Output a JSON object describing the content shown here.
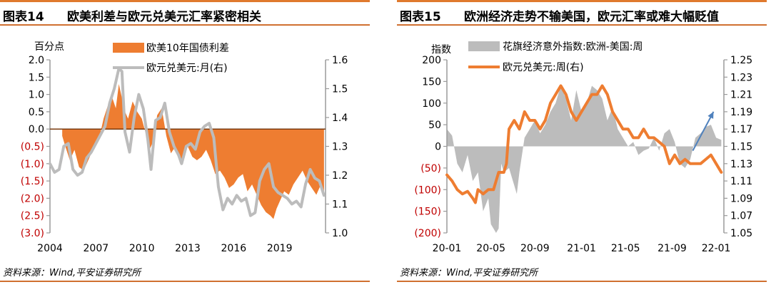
{
  "colors": {
    "orange": "#ee7d31",
    "gray": "#bcbcbc",
    "red": "#c00000",
    "axis": "#9a9a9a",
    "arrow": "#4f81bd",
    "rule": "#d07030"
  },
  "left": {
    "title_num": "图表14",
    "title_text": "欧美利差与欧元兑美元汇率紧密相关",
    "source": "资料来源：Wind,平安证券研究所",
    "chart_data": {
      "type": "area+line",
      "ylabel_left": "百分点",
      "ylim_left": [
        -3.0,
        2.0
      ],
      "yticks_left": [
        "2.0",
        "1.5",
        "1.0",
        "0.5",
        "0.0",
        "(0.5)",
        "(1.0)",
        "(1.5)",
        "(2.0)",
        "(2.5)",
        "(3.0)"
      ],
      "ylim_right": [
        1.0,
        1.6
      ],
      "yticks_right": [
        "1.6",
        "1.5",
        "1.4",
        "1.3",
        "1.2",
        "1.1",
        "1.0"
      ],
      "xlim": [
        2004,
        2022
      ],
      "xticks": [
        "2004",
        "2007",
        "2010",
        "2013",
        "2016",
        "2019"
      ],
      "series": [
        {
          "name": "欧美10年国债利差",
          "kind": "area",
          "axis": "left",
          "x": [
            2004.8,
            2005.0,
            2005.3,
            2005.6,
            2005.9,
            2006.2,
            2006.6,
            2006.9,
            2007.2,
            2007.5,
            2007.8,
            2008.0,
            2008.3,
            2008.5,
            2008.7,
            2008.9,
            2009.1,
            2009.4,
            2009.7,
            2010.0,
            2010.3,
            2010.5,
            2010.8,
            2011.0,
            2011.3,
            2011.6,
            2011.9,
            2012.2,
            2012.5,
            2012.8,
            2013.0,
            2013.3,
            2013.6,
            2013.9,
            2014.2,
            2014.5,
            2014.8,
            2015.1,
            2015.4,
            2015.7,
            2016.0,
            2016.3,
            2016.6,
            2016.9,
            2017.2,
            2017.5,
            2017.8,
            2018.1,
            2018.4,
            2018.6,
            2018.8,
            2019.0,
            2019.3,
            2019.6,
            2019.9,
            2020.2,
            2020.5,
            2020.8,
            2021.1,
            2021.4,
            2021.7,
            2021.9
          ],
          "y": [
            -0.2,
            -0.5,
            -0.9,
            -0.6,
            -1.1,
            -1.2,
            -0.8,
            -0.5,
            -0.3,
            0.3,
            0.7,
            1.0,
            0.6,
            1.3,
            0.9,
            0.5,
            0.3,
            0.8,
            0.5,
            0.3,
            -0.2,
            -0.6,
            -0.3,
            0.4,
            0.6,
            -0.2,
            -0.7,
            -0.5,
            -1.0,
            -0.6,
            -0.5,
            -0.8,
            -0.9,
            -0.8,
            -0.6,
            -0.9,
            -1.3,
            -1.2,
            -1.4,
            -1.7,
            -1.6,
            -1.4,
            -1.3,
            -1.8,
            -1.6,
            -1.9,
            -2.2,
            -2.4,
            -2.5,
            -2.6,
            -2.3,
            -2.1,
            -1.8,
            -1.9,
            -1.6,
            -1.4,
            -1.2,
            -1.5,
            -1.7,
            -1.9,
            -1.6,
            -1.8
          ]
        },
        {
          "name": "欧元兑美元:月(右)",
          "kind": "line",
          "axis": "right",
          "x": [
            2004.0,
            2004.3,
            2004.6,
            2004.9,
            2005.2,
            2005.5,
            2005.8,
            2006.1,
            2006.4,
            2006.7,
            2007.0,
            2007.3,
            2007.6,
            2007.9,
            2008.2,
            2008.5,
            2008.7,
            2008.9,
            2009.2,
            2009.5,
            2009.8,
            2010.1,
            2010.4,
            2010.6,
            2010.9,
            2011.2,
            2011.5,
            2011.8,
            2012.1,
            2012.4,
            2012.6,
            2012.9,
            2013.2,
            2013.5,
            2013.8,
            2014.1,
            2014.4,
            2014.7,
            2015.0,
            2015.3,
            2015.6,
            2015.9,
            2016.2,
            2016.5,
            2016.8,
            2017.1,
            2017.4,
            2017.7,
            2018.0,
            2018.3,
            2018.6,
            2018.9,
            2019.2,
            2019.5,
            2019.8,
            2020.1,
            2020.4,
            2020.7,
            2021.0,
            2021.3,
            2021.6,
            2021.9
          ],
          "y": [
            1.24,
            1.21,
            1.22,
            1.3,
            1.31,
            1.22,
            1.2,
            1.21,
            1.26,
            1.28,
            1.31,
            1.34,
            1.37,
            1.45,
            1.5,
            1.57,
            1.56,
            1.35,
            1.28,
            1.4,
            1.48,
            1.43,
            1.32,
            1.22,
            1.39,
            1.4,
            1.45,
            1.35,
            1.3,
            1.27,
            1.24,
            1.3,
            1.31,
            1.29,
            1.35,
            1.37,
            1.38,
            1.33,
            1.16,
            1.08,
            1.12,
            1.1,
            1.13,
            1.11,
            1.12,
            1.06,
            1.07,
            1.18,
            1.22,
            1.24,
            1.16,
            1.14,
            1.13,
            1.12,
            1.1,
            1.11,
            1.09,
            1.17,
            1.22,
            1.19,
            1.18,
            1.13
          ]
        }
      ]
    }
  },
  "right": {
    "title_num": "图表15",
    "title_text": "欧洲经济走势不输美国，欧元汇率或难大幅贬值",
    "source": "资料来源：Wind,平安证券研究所",
    "chart_data": {
      "type": "area+line",
      "ylabel_left": "指数",
      "ylim_left": [
        -200,
        200
      ],
      "yticks_left": [
        "200",
        "150",
        "100",
        "50",
        "0",
        "(50)",
        "(100)",
        "(150)",
        "(200)"
      ],
      "ylim_right": [
        1.05,
        1.25
      ],
      "yticks_right": [
        "1.25",
        "1.23",
        "1.21",
        "1.19",
        "1.17",
        "1.15",
        "1.13",
        "1.11",
        "1.09",
        "1.07",
        "1.05"
      ],
      "xlim": [
        0,
        107
      ],
      "xticks": [
        "20-01",
        "20-05",
        "20-09",
        "21-01",
        "21-05",
        "21-09",
        "22-01"
      ],
      "series": [
        {
          "name": "花旗经济意外指数:欧洲-美国:周",
          "kind": "area",
          "axis": "left",
          "x": [
            0,
            2,
            4,
            6,
            8,
            10,
            12,
            14,
            16,
            17,
            18,
            19,
            20,
            21,
            22,
            24,
            26,
            27,
            28,
            30,
            32,
            34,
            36,
            38,
            40,
            42,
            44,
            46,
            48,
            50,
            52,
            54,
            56,
            58,
            60,
            62,
            64,
            66,
            68,
            70,
            72,
            74,
            76,
            78,
            80,
            82,
            84,
            86,
            88,
            90,
            92,
            94,
            96,
            98,
            100,
            102,
            104,
            106
          ],
          "y": [
            40,
            25,
            -40,
            -60,
            -20,
            -80,
            -60,
            -150,
            -120,
            -180,
            -190,
            -200,
            -190,
            -40,
            -60,
            -50,
            -90,
            -110,
            -60,
            20,
            40,
            60,
            30,
            50,
            80,
            100,
            140,
            110,
            60,
            130,
            80,
            100,
            140,
            130,
            110,
            60,
            90,
            40,
            20,
            0,
            10,
            -20,
            -10,
            -5,
            20,
            -10,
            30,
            40,
            10,
            -40,
            -50,
            -30,
            20,
            30,
            45,
            50,
            20,
            15
          ]
        },
        {
          "name": "欧元兑美元:周(右)",
          "kind": "line",
          "axis": "right",
          "x": [
            0,
            2,
            4,
            6,
            8,
            10,
            11,
            12,
            14,
            16,
            18,
            19,
            20,
            22,
            23,
            24,
            26,
            28,
            30,
            32,
            34,
            36,
            38,
            40,
            42,
            44,
            46,
            48,
            50,
            52,
            54,
            56,
            58,
            60,
            62,
            64,
            66,
            68,
            70,
            72,
            74,
            76,
            78,
            80,
            82,
            84,
            86,
            88,
            90,
            92,
            94,
            96,
            98,
            100,
            102,
            104,
            106
          ],
          "y": [
            1.117,
            1.11,
            1.1,
            1.095,
            1.098,
            1.09,
            1.085,
            1.1,
            1.095,
            1.1,
            1.1,
            1.11,
            1.12,
            1.12,
            1.13,
            1.17,
            1.18,
            1.17,
            1.19,
            1.18,
            1.18,
            1.17,
            1.18,
            1.2,
            1.21,
            1.22,
            1.21,
            1.19,
            1.18,
            1.19,
            1.2,
            1.21,
            1.21,
            1.22,
            1.21,
            1.19,
            1.18,
            1.17,
            1.17,
            1.16,
            1.16,
            1.17,
            1.16,
            1.16,
            1.155,
            1.15,
            1.13,
            1.14,
            1.13,
            1.135,
            1.13,
            1.13,
            1.13,
            1.135,
            1.14,
            1.13,
            1.12
          ]
        }
      ],
      "arrow": {
        "from": [
          95,
          1.145
        ],
        "to": [
          103,
          1.19
        ]
      }
    }
  }
}
